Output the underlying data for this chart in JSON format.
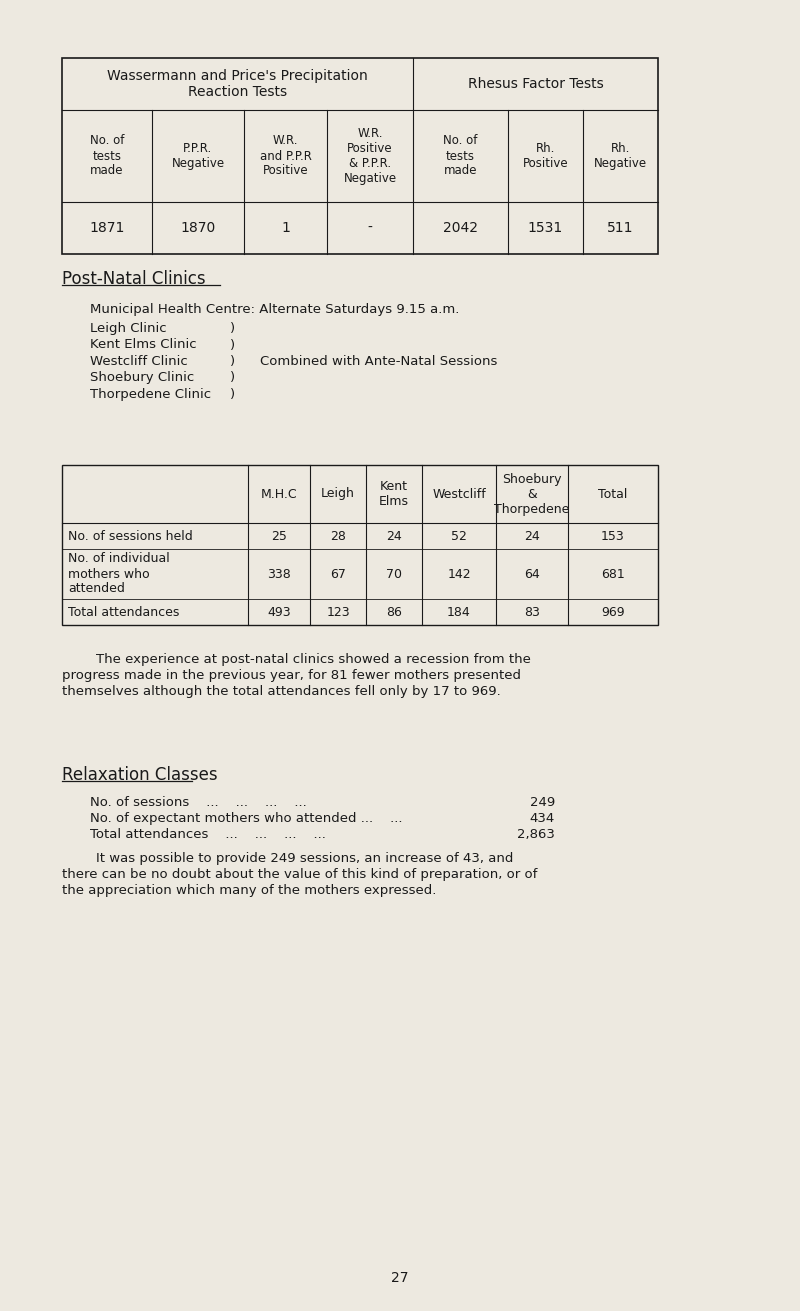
{
  "bg_color": "#ede9e0",
  "text_color": "#1a1a1a",
  "page_number": "27",
  "table1": {
    "title1": "Wassermann and Price's Precipitation\nReaction Tests",
    "title2": "Rhesus Factor Tests",
    "col_headers": [
      "No. of\ntests\nmade",
      "P.P.R.\nNegative",
      "W.R.\nand P.P.R\nPositive",
      "W.R.\nPositive\n& P.P.R.\nNegative",
      "No. of\ntests\nmade",
      "Rh.\nPositive",
      "Rh.\nNegative"
    ],
    "data_row": [
      "1871",
      "1870",
      "1",
      "-",
      "2042",
      "1531",
      "511"
    ]
  },
  "post_natal_title": "Post-Natal Clinics",
  "mhc_text": "Municipal Health Centre: Alternate Saturdays 9.15 a.m.",
  "clinic_lines_left": [
    "Leigh Clinic",
    "Kent Elms Clinic",
    "Westcliff Clinic",
    "Shoebury Clinic",
    "Thorpedene Clinic"
  ],
  "combined_text": "Combined with Ante-Natal Sessions",
  "combined_line_idx": 2,
  "table2": {
    "col_headers": [
      "",
      "M.H.C",
      "Leigh",
      "Kent\nElms",
      "Westcliff",
      "Shoebury\n&\nThorpedene",
      "Total"
    ],
    "rows": [
      [
        "No. of sessions held",
        "25",
        "28",
        "24",
        "52",
        "24",
        "153"
      ],
      [
        "No. of individual\nmothers who\nattended",
        "338",
        "67",
        "70",
        "142",
        "64",
        "681"
      ],
      [
        "Total attendances",
        "493",
        "123",
        "86",
        "184",
        "83",
        "969"
      ]
    ]
  },
  "para1_lines": [
    "        The experience at post-natal clinics showed a recession from the",
    "progress made in the previous year, for 81 fewer mothers presented",
    "themselves although the total attendances fell only by 17 to 969."
  ],
  "relaxation_title": "Relaxation Classes",
  "relaxation_lines": [
    [
      "No. of sessions    ...    ...    ...    ...",
      "249"
    ],
    [
      "No. of expectant mothers who attended ...    ...",
      "434"
    ],
    [
      "Total attendances    ...    ...    ...    ...",
      "2,863"
    ]
  ],
  "para2_lines": [
    "        It was possible to provide 249 sessions, an increase of 43, and",
    "there can be no doubt about the value of this kind of preparation, or of",
    "the appreciation which many of the mothers expressed."
  ]
}
